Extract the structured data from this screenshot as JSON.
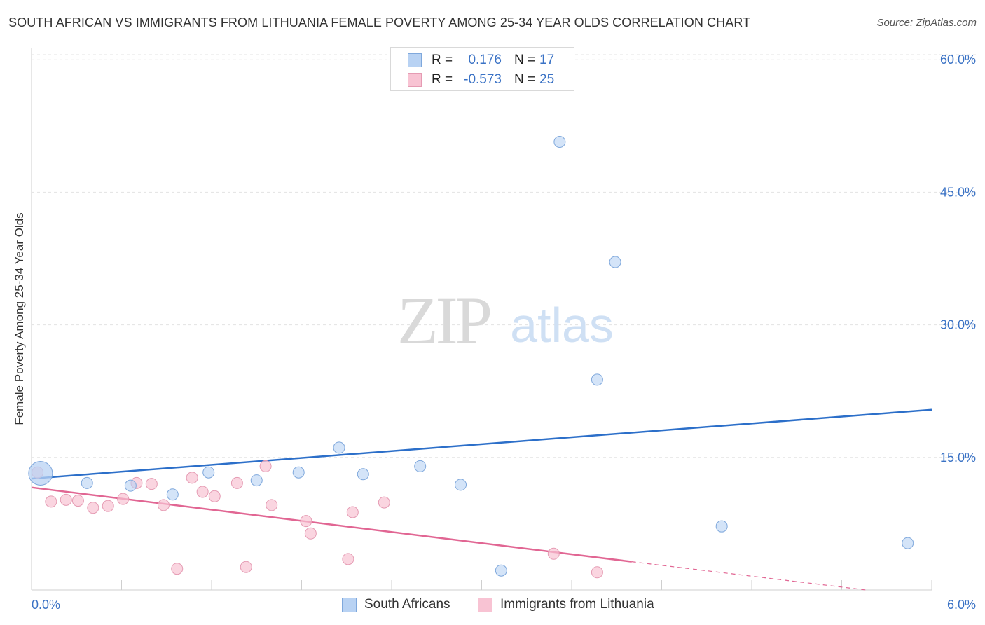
{
  "header": {
    "title": "SOUTH AFRICAN VS IMMIGRANTS FROM LITHUANIA FEMALE POVERTY AMONG 25-34 YEAR OLDS CORRELATION CHART",
    "source": "Source: ZipAtlas.com"
  },
  "watermark": {
    "zip": "ZIP",
    "atlas": "atlas"
  },
  "legend_top": {
    "rows": [
      {
        "r_label": "R =",
        "r_value": "0.176",
        "n_label": "N =",
        "n_value": "17"
      },
      {
        "r_label": "R =",
        "r_value": "-0.573",
        "n_label": "N =",
        "n_value": "25"
      }
    ]
  },
  "chart_data": {
    "type": "scatter",
    "title": "SOUTH AFRICAN VS IMMIGRANTS FROM LITHUANIA FEMALE POVERTY AMONG 25-34 YEAR OLDS CORRELATION CHART",
    "xlabel": "",
    "ylabel": "Female Poverty Among 25-34 Year Olds",
    "xlim": [
      0,
      6
    ],
    "ylim": [
      0,
      62
    ],
    "x_tick_labels": [
      "0.0%",
      "6.0%"
    ],
    "y_ticks": [
      15,
      30,
      45,
      60
    ],
    "y_tick_labels": [
      "15.0%",
      "30.0%",
      "45.0%",
      "60.0%"
    ],
    "grid": true,
    "legend_position": "bottom",
    "colors": {
      "series1_fill": "#b8d2f3",
      "series1_stroke": "#7fa8dc",
      "series1_line": "#2c6fc9",
      "series2_fill": "#f8c3d3",
      "series2_stroke": "#e59bb3",
      "series2_line": "#e16693",
      "tick_label": "#3a72c5"
    },
    "series": [
      {
        "name": "South Africans",
        "r": 0.176,
        "n": 17,
        "trend": {
          "x0": 0.0,
          "y0": 12.6,
          "x1": 6.0,
          "y1": 20.4
        },
        "points": [
          {
            "x": 0.06,
            "y": 13.2,
            "big": true
          },
          {
            "x": 0.37,
            "y": 12.1
          },
          {
            "x": 0.66,
            "y": 11.8
          },
          {
            "x": 0.94,
            "y": 10.8
          },
          {
            "x": 1.18,
            "y": 13.3
          },
          {
            "x": 1.5,
            "y": 12.4
          },
          {
            "x": 1.78,
            "y": 13.3
          },
          {
            "x": 2.05,
            "y": 16.1
          },
          {
            "x": 2.21,
            "y": 13.1
          },
          {
            "x": 2.59,
            "y": 14.0
          },
          {
            "x": 2.86,
            "y": 11.9
          },
          {
            "x": 3.13,
            "y": 2.2
          },
          {
            "x": 3.52,
            "y": 50.7
          },
          {
            "x": 3.77,
            "y": 23.8
          },
          {
            "x": 3.89,
            "y": 37.1
          },
          {
            "x": 4.6,
            "y": 7.2
          },
          {
            "x": 5.84,
            "y": 5.3
          }
        ]
      },
      {
        "name": "Immigrants from Lithuania",
        "r": -0.573,
        "n": 25,
        "trend": {
          "x0": 0.0,
          "y0": 11.6,
          "x1": 4.0,
          "y1": 3.2
        },
        "trend_dashed": {
          "x0": 4.0,
          "y0": 3.2,
          "x1": 6.0,
          "y1": -0.9
        },
        "points": [
          {
            "x": 0.04,
            "y": 13.3
          },
          {
            "x": 0.13,
            "y": 10.0
          },
          {
            "x": 0.23,
            "y": 10.2
          },
          {
            "x": 0.31,
            "y": 10.1
          },
          {
            "x": 0.41,
            "y": 9.3
          },
          {
            "x": 0.51,
            "y": 9.5
          },
          {
            "x": 0.61,
            "y": 10.3
          },
          {
            "x": 0.7,
            "y": 12.1
          },
          {
            "x": 0.8,
            "y": 12.0
          },
          {
            "x": 0.88,
            "y": 9.6
          },
          {
            "x": 0.97,
            "y": 2.4
          },
          {
            "x": 1.07,
            "y": 12.7
          },
          {
            "x": 1.14,
            "y": 11.1
          },
          {
            "x": 1.22,
            "y": 10.6
          },
          {
            "x": 1.37,
            "y": 12.1
          },
          {
            "x": 1.43,
            "y": 2.6
          },
          {
            "x": 1.56,
            "y": 14.0
          },
          {
            "x": 1.6,
            "y": 9.6
          },
          {
            "x": 1.83,
            "y": 7.8
          },
          {
            "x": 1.86,
            "y": 6.4
          },
          {
            "x": 2.11,
            "y": 3.5
          },
          {
            "x": 2.14,
            "y": 8.8
          },
          {
            "x": 2.35,
            "y": 9.9
          },
          {
            "x": 3.48,
            "y": 4.1
          },
          {
            "x": 3.77,
            "y": 2.0
          }
        ]
      }
    ]
  },
  "legend_bottom": {
    "items": [
      {
        "label": "South Africans"
      },
      {
        "label": "Immigrants from Lithuania"
      }
    ]
  }
}
